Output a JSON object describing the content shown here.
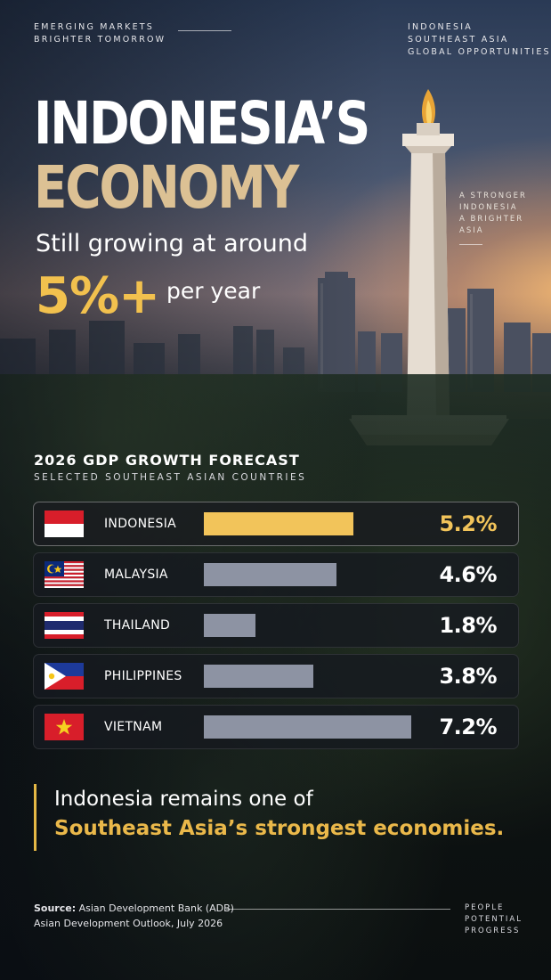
{
  "header": {
    "left_lines": [
      "EMERGING MARKETS",
      "BRIGHTER TOMORROW"
    ],
    "right_lines": [
      "INDONESIA",
      "SOUTHEAST ASIA",
      "GLOBAL OPPORTUNITIES"
    ]
  },
  "side_tag": [
    "A STRONGER",
    "INDONESIA",
    "A BRIGHTER",
    "ASIA"
  ],
  "hero": {
    "title_line1": "INDONESIA’S",
    "title_line2": "ECONOMY",
    "subtitle": "Still growing at around",
    "stat": "5%+",
    "stat_tail": "per year"
  },
  "colors": {
    "accent_gold": "#f2c45a",
    "title_tan": "#dcc194",
    "bar_gray": "#8d93a3"
  },
  "chart_data": {
    "type": "bar",
    "orientation": "horizontal",
    "title": "2026 GDP GROWTH FORECAST",
    "subtitle": "SELECTED SOUTHEAST ASIAN COUNTRIES",
    "categories": [
      "INDONESIA",
      "MALAYSIA",
      "THAILAND",
      "PHILIPPINES",
      "VIETNAM"
    ],
    "values": [
      5.2,
      4.6,
      1.8,
      3.8,
      7.2
    ],
    "value_labels": [
      "5.2%",
      "4.6%",
      "1.8%",
      "3.8%",
      "7.2%"
    ],
    "unit": "%",
    "xlim": [
      0,
      7.2
    ],
    "highlight": "INDONESIA",
    "flags": [
      "indonesia-flag-icon",
      "malaysia-flag-icon",
      "thailand-flag-icon",
      "philippines-flag-icon",
      "vietnam-flag-icon"
    ]
  },
  "quote": {
    "line1": "Indonesia remains one of",
    "line2": "Southeast Asia’s strongest economies."
  },
  "footer": {
    "source_label": "Source:",
    "source_name": "Asian Development Bank (ADB)",
    "source_detail": "Asian Development Outlook, July 2026",
    "tag_lines": [
      "PEOPLE",
      "POTENTIAL",
      "PROGRESS"
    ]
  }
}
